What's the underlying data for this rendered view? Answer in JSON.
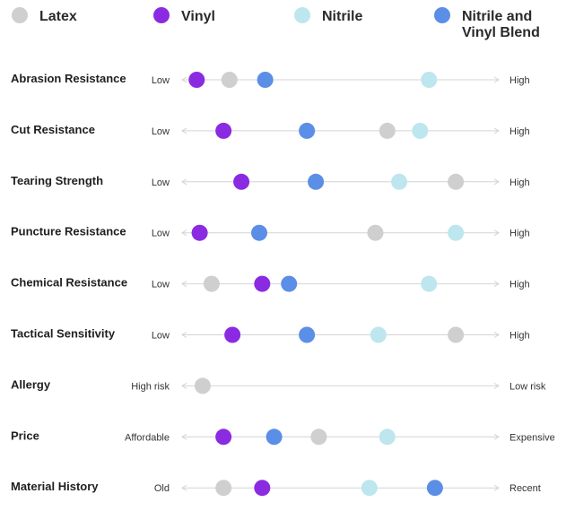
{
  "chart_data": {
    "type": "scatter",
    "title": "",
    "scale": [
      0,
      100
    ],
    "legend": {
      "position": "top",
      "items": [
        {
          "key": "latex",
          "lines": [
            "Latex"
          ],
          "color": "#cfcfcf"
        },
        {
          "key": "vinyl",
          "lines": [
            "Vinyl"
          ],
          "color": "#8a2be2"
        },
        {
          "key": "nitrile",
          "lines": [
            "Nitrile"
          ],
          "color": "#bde6ee"
        },
        {
          "key": "blend",
          "lines": [
            "Nitrile and",
            "Vinyl Blend"
          ],
          "color": "#5b8ee6"
        }
      ]
    },
    "rows": [
      {
        "label": "Abrasion Resistance",
        "low": "Low",
        "high": "High",
        "points": [
          {
            "series": "vinyl",
            "value": 4
          },
          {
            "series": "latex",
            "value": 15
          },
          {
            "series": "blend",
            "value": 27
          },
          {
            "series": "nitrile",
            "value": 82
          }
        ]
      },
      {
        "label": "Cut Resistance",
        "low": "Low",
        "high": "High",
        "points": [
          {
            "series": "vinyl",
            "value": 13
          },
          {
            "series": "blend",
            "value": 41
          },
          {
            "series": "latex",
            "value": 68
          },
          {
            "series": "nitrile",
            "value": 79
          }
        ]
      },
      {
        "label": "Tearing Strength",
        "low": "Low",
        "high": "High",
        "points": [
          {
            "series": "vinyl",
            "value": 19
          },
          {
            "series": "blend",
            "value": 44
          },
          {
            "series": "nitrile",
            "value": 72
          },
          {
            "series": "latex",
            "value": 91
          }
        ]
      },
      {
        "label": "Puncture Resistance",
        "low": "Low",
        "high": "High",
        "points": [
          {
            "series": "vinyl",
            "value": 5
          },
          {
            "series": "blend",
            "value": 25
          },
          {
            "series": "latex",
            "value": 64
          },
          {
            "series": "nitrile",
            "value": 91
          }
        ]
      },
      {
        "label": "Chemical Resistance",
        "low": "Low",
        "high": "High",
        "points": [
          {
            "series": "latex",
            "value": 9
          },
          {
            "series": "vinyl",
            "value": 26
          },
          {
            "series": "blend",
            "value": 35
          },
          {
            "series": "nitrile",
            "value": 82
          }
        ]
      },
      {
        "label": "Tactical Sensitivity",
        "low": "Low",
        "high": "High",
        "points": [
          {
            "series": "vinyl",
            "value": 16
          },
          {
            "series": "blend",
            "value": 41
          },
          {
            "series": "nitrile",
            "value": 65
          },
          {
            "series": "latex",
            "value": 91
          }
        ]
      },
      {
        "label": "Allergy",
        "low": "High risk",
        "high": "Low risk",
        "points": [
          {
            "series": "latex",
            "value": 6
          }
        ]
      },
      {
        "label": "Price",
        "low": "Affordable",
        "high": "Expensive",
        "points": [
          {
            "series": "vinyl",
            "value": 13
          },
          {
            "series": "blend",
            "value": 30
          },
          {
            "series": "latex",
            "value": 45
          },
          {
            "series": "nitrile",
            "value": 68
          }
        ]
      },
      {
        "label": "Material History",
        "low": "Old",
        "high": "Recent",
        "points": [
          {
            "series": "latex",
            "value": 13
          },
          {
            "series": "vinyl",
            "value": 26
          },
          {
            "series": "nitrile",
            "value": 62
          },
          {
            "series": "blend",
            "value": 84
          }
        ]
      }
    ]
  }
}
